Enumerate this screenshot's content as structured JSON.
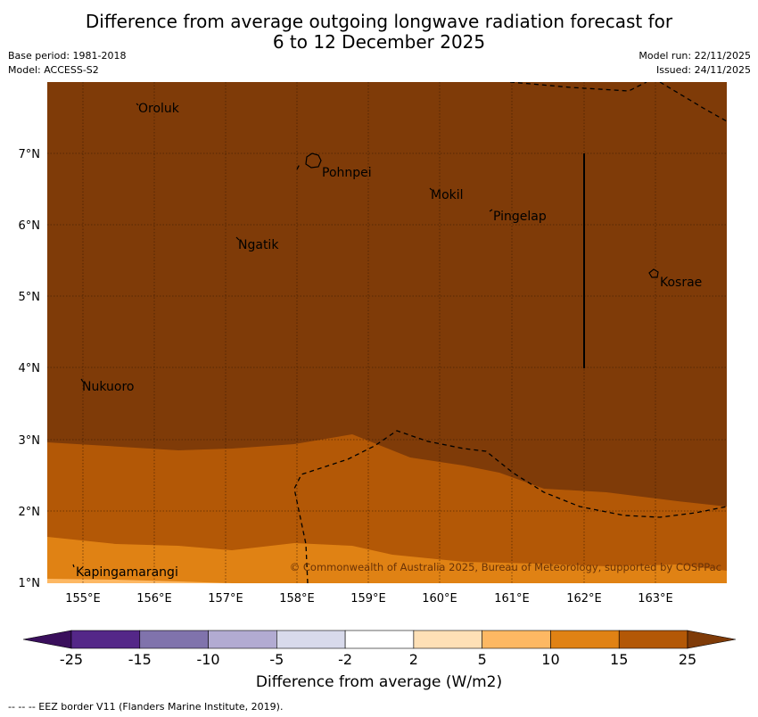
{
  "title_line1": "Difference from average outgoing longwave radiation forecast for",
  "title_line2": "6 to 12 December 2025",
  "base_period": "Base period: 1981-2018",
  "model": "Model: ACCESS-S2",
  "model_run": "Model run: 22/11/2025",
  "issued": "Issued: 24/11/2025",
  "map": {
    "lon_ticks": [
      "155°E",
      "156°E",
      "157°E",
      "158°E",
      "159°E",
      "160°E",
      "161°E",
      "162°E",
      "163°E"
    ],
    "lat_ticks": [
      "7°N",
      "6°N",
      "5°N",
      "4°N",
      "3°N",
      "2°N",
      "1°N"
    ],
    "places": [
      "Oroluk",
      "Pohnpei",
      "Mokil",
      "Pingelap",
      "Ngatik",
      "Kosrae",
      "Nukuoro",
      "Kapingamarangi"
    ],
    "copyright": "© Commonwealth of Australia 2025, Bureau of Meteorology, supported by COSPPac"
  },
  "colorbar": {
    "ticks": [
      "-25",
      "-15",
      "-10",
      "-5",
      "-2",
      "2",
      "5",
      "10",
      "15",
      "25"
    ],
    "colors": [
      "#3a0f5c",
      "#542788",
      "#8073ac",
      "#b2abd2",
      "#d8daeb",
      "#ffffff",
      "#fee0b6",
      "#fdb863",
      "#e08214",
      "#b35806",
      "#7f3b08"
    ],
    "label": "Difference from average (W/m2)"
  },
  "eez_note": "--  --  -- EEZ border V11 (Flanders Marine Institute, 2019)."
}
